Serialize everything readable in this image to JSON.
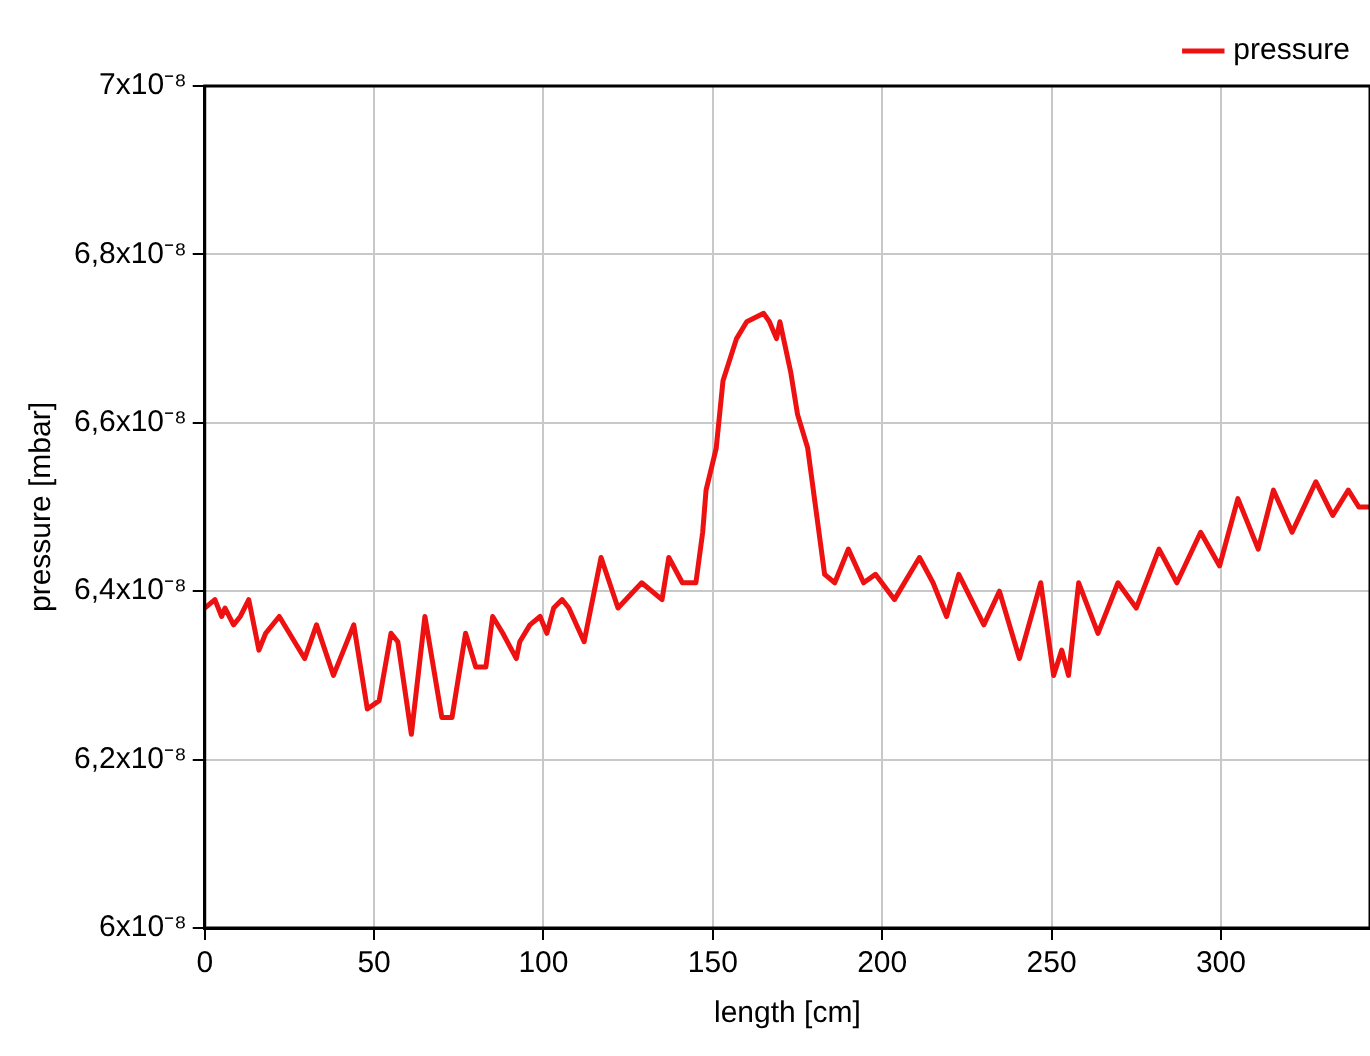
{
  "chart_data": {
    "type": "line",
    "xlabel": "length [cm]",
    "ylabel": "pressure [mbar]",
    "xlim": [
      0,
      344
    ],
    "xticks": [
      0,
      50,
      100,
      150,
      200,
      250,
      300
    ],
    "ylim": [
      6e-08,
      7e-08
    ],
    "yticks": [
      {
        "value": 6e-08,
        "label": "6x10⁻⁸"
      },
      {
        "value": 6.2e-08,
        "label": "6,2x10⁻⁸"
      },
      {
        "value": 6.4e-08,
        "label": "6,4x10⁻⁸"
      },
      {
        "value": 6.6e-08,
        "label": "6,6x10⁻⁸"
      },
      {
        "value": 6.8e-08,
        "label": "6,8x10⁻⁸"
      },
      {
        "value": 7e-08,
        "label": "7x10⁻⁸"
      }
    ],
    "grid": true,
    "legend": "top right",
    "marker": "none",
    "line_style": "solid",
    "series": [
      {
        "name": "pressure",
        "color": "#ee1111",
        "x": [
          0,
          3,
          5,
          6,
          8.5,
          10.5,
          13,
          16,
          18,
          22,
          25,
          29.5,
          33,
          38,
          44,
          48,
          51.5,
          55,
          57,
          61,
          65,
          70,
          73,
          77,
          80,
          83,
          85,
          88,
          92,
          93,
          96,
          99,
          101,
          103,
          105.5,
          107.5,
          112,
          117,
          122,
          129,
          135,
          137,
          141,
          145,
          147,
          148,
          151,
          153,
          157,
          160,
          165,
          166.7,
          168.8,
          169.8,
          173,
          175,
          178,
          183,
          186,
          190,
          194.5,
          198,
          203.6,
          211,
          215,
          219,
          222.6,
          230,
          234.6,
          240.5,
          246.8,
          250.6,
          253,
          255,
          258,
          263.7,
          269.6,
          275,
          281.7,
          287,
          294,
          299.6,
          305,
          311,
          315.5,
          321,
          328,
          333,
          337.6,
          340.7,
          344
        ],
        "values": [
          6.38e-08,
          6.39e-08,
          6.37e-08,
          6.38e-08,
          6.36e-08,
          6.37e-08,
          6.39e-08,
          6.33e-08,
          6.35e-08,
          6.37e-08,
          6.35e-08,
          6.32e-08,
          6.36e-08,
          6.3e-08,
          6.36e-08,
          6.26e-08,
          6.27e-08,
          6.35e-08,
          6.34e-08,
          6.23e-08,
          6.37e-08,
          6.25e-08,
          6.25e-08,
          6.35e-08,
          6.31e-08,
          6.31e-08,
          6.37e-08,
          6.35e-08,
          6.32e-08,
          6.34e-08,
          6.36e-08,
          6.37e-08,
          6.35e-08,
          6.38e-08,
          6.39e-08,
          6.38e-08,
          6.34e-08,
          6.44e-08,
          6.38e-08,
          6.41e-08,
          6.39e-08,
          6.44e-08,
          6.41e-08,
          6.41e-08,
          6.47e-08,
          6.52e-08,
          6.57e-08,
          6.65e-08,
          6.7e-08,
          6.72e-08,
          6.73e-08,
          6.72e-08,
          6.7e-08,
          6.72e-08,
          6.66e-08,
          6.61e-08,
          6.57e-08,
          6.42e-08,
          6.41e-08,
          6.45e-08,
          6.41e-08,
          6.42e-08,
          6.39e-08,
          6.44e-08,
          6.41e-08,
          6.37e-08,
          6.42e-08,
          6.36e-08,
          6.4e-08,
          6.32e-08,
          6.41e-08,
          6.3e-08,
          6.33e-08,
          6.3e-08,
          6.41e-08,
          6.35e-08,
          6.41e-08,
          6.38e-08,
          6.45e-08,
          6.41e-08,
          6.47e-08,
          6.43e-08,
          6.51e-08,
          6.45e-08,
          6.52e-08,
          6.47e-08,
          6.53e-08,
          6.49e-08,
          6.52e-08,
          6.5e-08,
          6.5e-08
        ]
      }
    ]
  }
}
